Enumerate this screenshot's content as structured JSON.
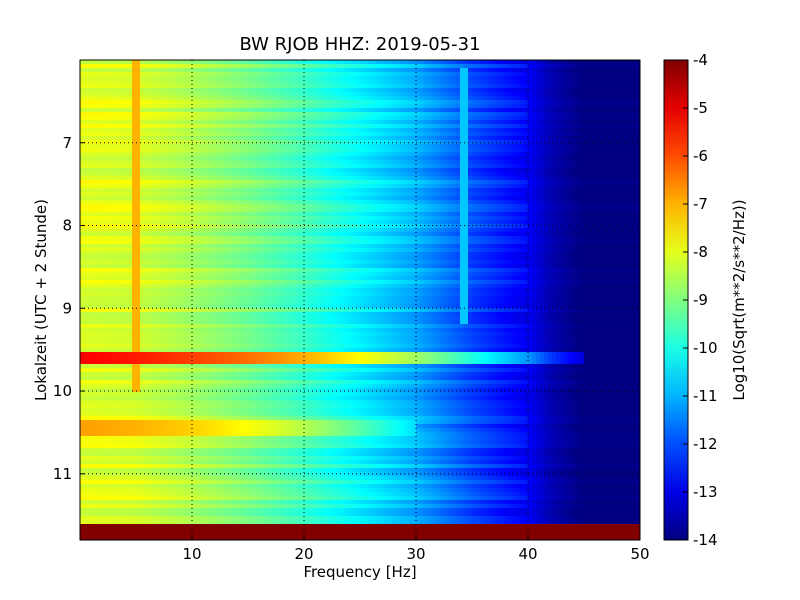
{
  "chart_data": {
    "type": "heatmap",
    "title": "BW RJOB HHZ: 2019-05-31",
    "xlabel": "Frequency [Hz]",
    "ylabel": "Lokalzeit (UTC + 2 Stunde)",
    "xlim": [
      0,
      50
    ],
    "ylim": [
      11.8,
      6.0
    ],
    "y_axis_inverted": true,
    "x_ticks": [
      10,
      20,
      30,
      40,
      50
    ],
    "y_ticks": [
      7,
      8,
      9,
      10,
      11
    ],
    "grid": true,
    "colormap": "jet",
    "colorbar": {
      "label": "Log10(Sqrt(m**2/s**2/Hz))",
      "range": [
        -14,
        -4
      ],
      "ticks": [
        -4,
        -5,
        -6,
        -7,
        -8,
        -9,
        -10,
        -11,
        -12,
        -13,
        -14
      ]
    },
    "z_value_by_frequency": {
      "frequency_hz": [
        0,
        5,
        10,
        15,
        20,
        25,
        30,
        35,
        40,
        42,
        45,
        50
      ],
      "log10_psd": [
        -8.0,
        -8.1,
        -8.5,
        -9.0,
        -9.6,
        -10.3,
        -11.0,
        -12.0,
        -12.8,
        -13.5,
        -14.0,
        -14.0
      ]
    },
    "features": [
      {
        "label": "strong band",
        "time": 9.6,
        "log10_psd_peak": -5.2,
        "freq_range": [
          0,
          45
        ]
      },
      {
        "label": "moderate band",
        "time": 10.45,
        "log10_psd_peak": -6.8,
        "freq_range": [
          0,
          30
        ]
      },
      {
        "label": "saturated block",
        "time_range": [
          11.6,
          11.8
        ],
        "log10_psd": -4.0,
        "freq_range": [
          0,
          50
        ]
      },
      {
        "label": "narrow line",
        "freq": 5,
        "time_range": [
          6.0,
          10.0
        ],
        "log10_psd": -7.0
      },
      {
        "label": "narrow line",
        "freq": 34.3,
        "time_range": [
          6.1,
          9.2
        ],
        "log10_psd": -10.8
      }
    ]
  }
}
